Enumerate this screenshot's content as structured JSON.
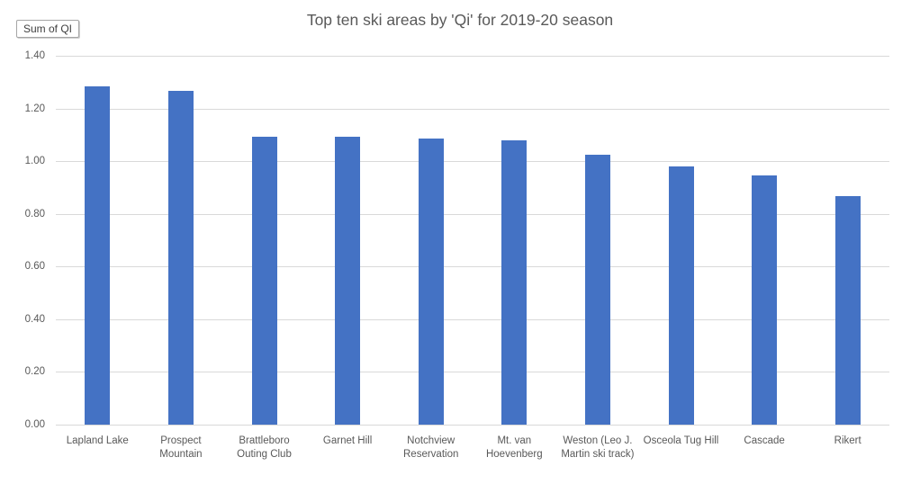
{
  "field_button": {
    "label": "Sum of QI"
  },
  "chart_data": {
    "type": "bar",
    "title": "Top ten ski areas by 'Qi' for 2019-20 season",
    "categories": [
      "Lapland Lake",
      "Prospect\nMountain",
      "Brattleboro\nOuting Club",
      "Garnet Hill",
      "Notchview\nReservation",
      "Mt. van\nHoevenberg",
      "Weston (Leo J.\nMartin ski track)",
      "Osceola Tug Hill",
      "Cascade",
      "Rikert"
    ],
    "values": [
      1.285,
      1.268,
      1.094,
      1.091,
      1.086,
      1.08,
      1.025,
      0.979,
      0.947,
      0.866
    ],
    "xlabel": "",
    "ylabel": "",
    "ylim": [
      0,
      1.4
    ],
    "yticks": [
      0.0,
      0.2,
      0.4,
      0.6,
      0.8,
      1.0,
      1.2,
      1.4
    ],
    "ytick_decimals": 2,
    "grid": "horizontal",
    "legend": "none",
    "bar_color": "#4472c4",
    "gridline_color": "#d9d9d9",
    "text_color": "#595959"
  }
}
